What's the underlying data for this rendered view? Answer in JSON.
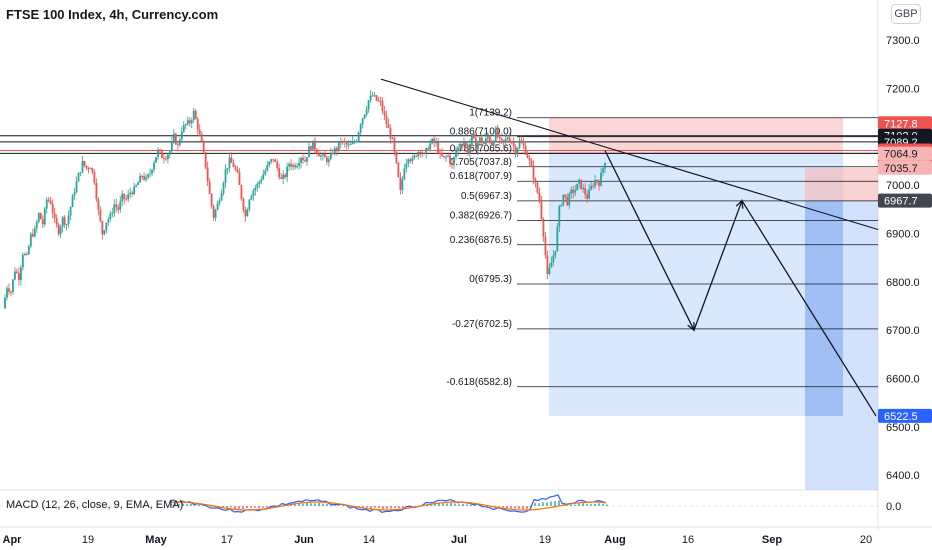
{
  "header": {
    "symbol_title": "FTSE 100 Index, 4h, Currency.com",
    "currency_button": "GBP"
  },
  "indicator": {
    "label": "MACD (12, 26, close, 9, EMA, EMA)",
    "scale_label": "0.0"
  },
  "colors": {
    "up": "#26a69a",
    "down": "#ef5350",
    "fib": "#131722",
    "short_stop": "#f7b4b4",
    "short_target": "#aecbfa",
    "macd": "#2962ff",
    "signal": "#ff6d00"
  },
  "chart_data": {
    "type": "candlestick",
    "title": "FTSE 100 Index, 4h, Currency.com",
    "ylim": [
      6300,
      7380
    ],
    "y_ticks": [
      "7300.0",
      "7200.0",
      "7100.0",
      "7000.0",
      "6900.0",
      "6800.0",
      "6700.0",
      "6600.0",
      "6500.0",
      "6400.0"
    ],
    "x_ticks": [
      "Apr",
      "19",
      "May",
      "17",
      "Jun",
      "14",
      "Jul",
      "19",
      "Aug",
      "16",
      "Sep",
      "20"
    ],
    "price_path": [
      [
        0,
        6745
      ],
      [
        4,
        6790
      ],
      [
        8,
        6780
      ],
      [
        12,
        6825
      ],
      [
        16,
        6810
      ],
      [
        20,
        6860
      ],
      [
        24,
        6850
      ],
      [
        28,
        6895
      ],
      [
        32,
        6905
      ],
      [
        36,
        6940
      ],
      [
        40,
        6920
      ],
      [
        44,
        6970
      ],
      [
        48,
        6965
      ],
      [
        52,
        6925
      ],
      [
        56,
        6905
      ],
      [
        60,
        6930
      ],
      [
        64,
        6920
      ],
      [
        68,
        6955
      ],
      [
        72,
        6990
      ],
      [
        76,
        7020
      ],
      [
        80,
        7045
      ],
      [
        84,
        7035
      ],
      [
        88,
        7040
      ],
      [
        92,
        7010
      ],
      [
        96,
        6945
      ],
      [
        100,
        6900
      ],
      [
        104,
        6925
      ],
      [
        108,
        6935
      ],
      [
        112,
        6960
      ],
      [
        116,
        6950
      ],
      [
        120,
        6975
      ],
      [
        124,
        6970
      ],
      [
        128,
        6985
      ],
      [
        132,
        6990
      ],
      [
        136,
        7005
      ],
      [
        140,
        7020
      ],
      [
        144,
        7010
      ],
      [
        148,
        7025
      ],
      [
        152,
        7050
      ],
      [
        156,
        7070
      ],
      [
        160,
        7060
      ],
      [
        164,
        7060
      ],
      [
        168,
        7070
      ],
      [
        172,
        7100
      ],
      [
        176,
        7080
      ],
      [
        180,
        7115
      ],
      [
        184,
        7125
      ],
      [
        188,
        7130
      ],
      [
        192,
        7150
      ],
      [
        196,
        7120
      ],
      [
        200,
        7085
      ],
      [
        204,
        7040
      ],
      [
        208,
        6980
      ],
      [
        212,
        6935
      ],
      [
        216,
        6960
      ],
      [
        220,
        6990
      ],
      [
        224,
        7030
      ],
      [
        228,
        7050
      ],
      [
        232,
        7040
      ],
      [
        236,
        7020
      ],
      [
        240,
        6975
      ],
      [
        244,
        6935
      ],
      [
        248,
        6975
      ],
      [
        252,
        6990
      ],
      [
        256,
        7000
      ],
      [
        260,
        7015
      ],
      [
        264,
        7030
      ],
      [
        268,
        7045
      ],
      [
        272,
        7055
      ],
      [
        276,
        7035
      ],
      [
        280,
        7010
      ],
      [
        284,
        7020
      ],
      [
        288,
        7045
      ],
      [
        292,
        7040
      ],
      [
        296,
        7045
      ],
      [
        300,
        7060
      ],
      [
        304,
        7050
      ],
      [
        308,
        7075
      ],
      [
        312,
        7085
      ],
      [
        316,
        7070
      ],
      [
        320,
        7060
      ],
      [
        324,
        7055
      ],
      [
        328,
        7050
      ],
      [
        332,
        7070
      ],
      [
        336,
        7075
      ],
      [
        340,
        7090
      ],
      [
        344,
        7085
      ],
      [
        348,
        7080
      ],
      [
        352,
        7085
      ],
      [
        356,
        7095
      ],
      [
        360,
        7130
      ],
      [
        364,
        7150
      ],
      [
        368,
        7175
      ],
      [
        372,
        7185
      ],
      [
        376,
        7175
      ],
      [
        380,
        7170
      ],
      [
        384,
        7140
      ],
      [
        388,
        7115
      ],
      [
        392,
        7090
      ],
      [
        396,
        7040
      ],
      [
        400,
        6985
      ],
      [
        404,
        7040
      ],
      [
        408,
        7060
      ],
      [
        412,
        7050
      ],
      [
        416,
        7065
      ],
      [
        420,
        7075
      ],
      [
        424,
        7060
      ],
      [
        428,
        7080
      ],
      [
        432,
        7090
      ],
      [
        436,
        7085
      ],
      [
        440,
        7060
      ],
      [
        444,
        7055
      ],
      [
        448,
        7060
      ],
      [
        452,
        7040
      ],
      [
        456,
        7070
      ],
      [
        460,
        7085
      ],
      [
        464,
        7090
      ],
      [
        468,
        7070
      ],
      [
        472,
        7100
      ],
      [
        476,
        7080
      ],
      [
        480,
        7095
      ],
      [
        484,
        7085
      ],
      [
        488,
        7100
      ],
      [
        492,
        7085
      ],
      [
        496,
        7110
      ],
      [
        500,
        7090
      ],
      [
        504,
        7085
      ],
      [
        508,
        7100
      ],
      [
        512,
        7090
      ],
      [
        516,
        7070
      ],
      [
        520,
        7090
      ],
      [
        524,
        7080
      ],
      [
        528,
        7060
      ],
      [
        532,
        7035
      ],
      [
        536,
        7000
      ],
      [
        540,
        6970
      ],
      [
        544,
        6900
      ],
      [
        548,
        6810
      ],
      [
        552,
        6840
      ],
      [
        556,
        6870
      ],
      [
        560,
        6950
      ],
      [
        564,
        6980
      ],
      [
        568,
        6965
      ],
      [
        572,
        6985
      ],
      [
        576,
        6990
      ],
      [
        580,
        7005
      ],
      [
        584,
        6990
      ],
      [
        588,
        6975
      ],
      [
        592,
        6995
      ],
      [
        596,
        7010
      ],
      [
        600,
        7005
      ],
      [
        604,
        7035
      ],
      [
        607,
        7060
      ]
    ],
    "drawing_levels": {
      "fib_lines": [
        {
          "label": "1(7139.2)",
          "price": 7139.2
        },
        {
          "label": "0.886(7100.0)",
          "price": 7100.0
        },
        {
          "label": "0.786(7065.6)",
          "price": 7065.6
        },
        {
          "label": "0.705(7037.8)",
          "price": 7037.8
        },
        {
          "label": "0.618(7007.9)",
          "price": 7007.9
        },
        {
          "label": "0.5(6967.3)",
          "price": 6967.3
        },
        {
          "label": "0.382(6926.7)",
          "price": 6926.7
        },
        {
          "label": "0.236(6876.5)",
          "price": 6876.5
        },
        {
          "label": "0(6795.3)",
          "price": 6795.3
        },
        {
          "label": "-0.27(6702.5)",
          "price": 6702.5
        },
        {
          "label": "-0.618(6582.8)",
          "price": 6582.8
        }
      ],
      "horizontal_rays": [
        {
          "price": 7102.0,
          "color": "#131722"
        },
        {
          "price": 7089.2,
          "color": "#131722"
        },
        {
          "price": 7065.6,
          "color": "#131722"
        },
        {
          "price": 7071.5,
          "color": "#ef5350"
        }
      ],
      "trendline": [
        [
          7219,
          "start"
        ],
        [
          6908,
          "end"
        ]
      ],
      "projection_path": [
        7071.5,
        6700,
        6967.7,
        6522.5
      ]
    },
    "price_badges": [
      {
        "text": "7127.8",
        "price": 7127.8,
        "bg": "#ef5350",
        "fg": "#ffffff"
      },
      {
        "text": "7102.0",
        "price": 7102.0,
        "bg": "#131722",
        "fg": "#ffffff"
      },
      {
        "text": "7089.2",
        "price": 7089.2,
        "bg": "#131722",
        "fg": "#ffffff"
      },
      {
        "text": "7071.5",
        "sub": "02:13:57",
        "price": 7071.5,
        "bg": "#ef5350",
        "fg": "#ffffff"
      },
      {
        "text": "7064.9",
        "price": 7064.9,
        "bg": "#f7b4b4",
        "fg": "#131722"
      },
      {
        "text": "7035.7",
        "price": 7035.7,
        "bg": "#f7b4b4",
        "fg": "#131722"
      },
      {
        "text": "6967.7",
        "price": 6967.7,
        "bg": "#434651",
        "fg": "#ffffff"
      },
      {
        "text": "6522.5",
        "price": 6522.5,
        "bg": "#2962ff",
        "fg": "#ffffff"
      }
    ]
  }
}
